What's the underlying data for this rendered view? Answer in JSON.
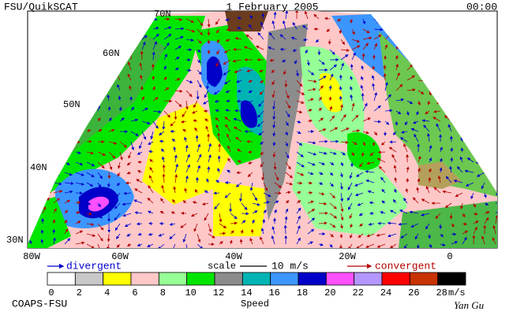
{
  "header": {
    "title": "FSU/QuikSCAT",
    "date": "1 February 2005",
    "time": "00:00"
  },
  "map": {
    "lat_labels": [
      "70N",
      "60N",
      "50N",
      "40N",
      "30N"
    ],
    "lon_labels": [
      "80W",
      "60W",
      "40W",
      "20W",
      "0"
    ]
  },
  "legend": {
    "divergent": "divergent",
    "scale": "scale",
    "scale_value": "10 m/s",
    "convergent": "convergent"
  },
  "colorbar": {
    "ticks": [
      0,
      2,
      4,
      6,
      8,
      10,
      12,
      14,
      16,
      18,
      20,
      22,
      24,
      26,
      28
    ],
    "unit": "m/s",
    "title": "Speed",
    "colors": [
      "#ffffff",
      "#c8c8c8",
      "#ffff00",
      "#ffc8c8",
      "#96ff96",
      "#00e600",
      "#8c8c8c",
      "#00b4b4",
      "#3c96ff",
      "#0000c8",
      "#ff50ff",
      "#b496ff",
      "#ff0000",
      "#c83200",
      "#000000"
    ]
  },
  "footer": {
    "left": "COAPS-FSU",
    "right": "Yan Gu"
  }
}
